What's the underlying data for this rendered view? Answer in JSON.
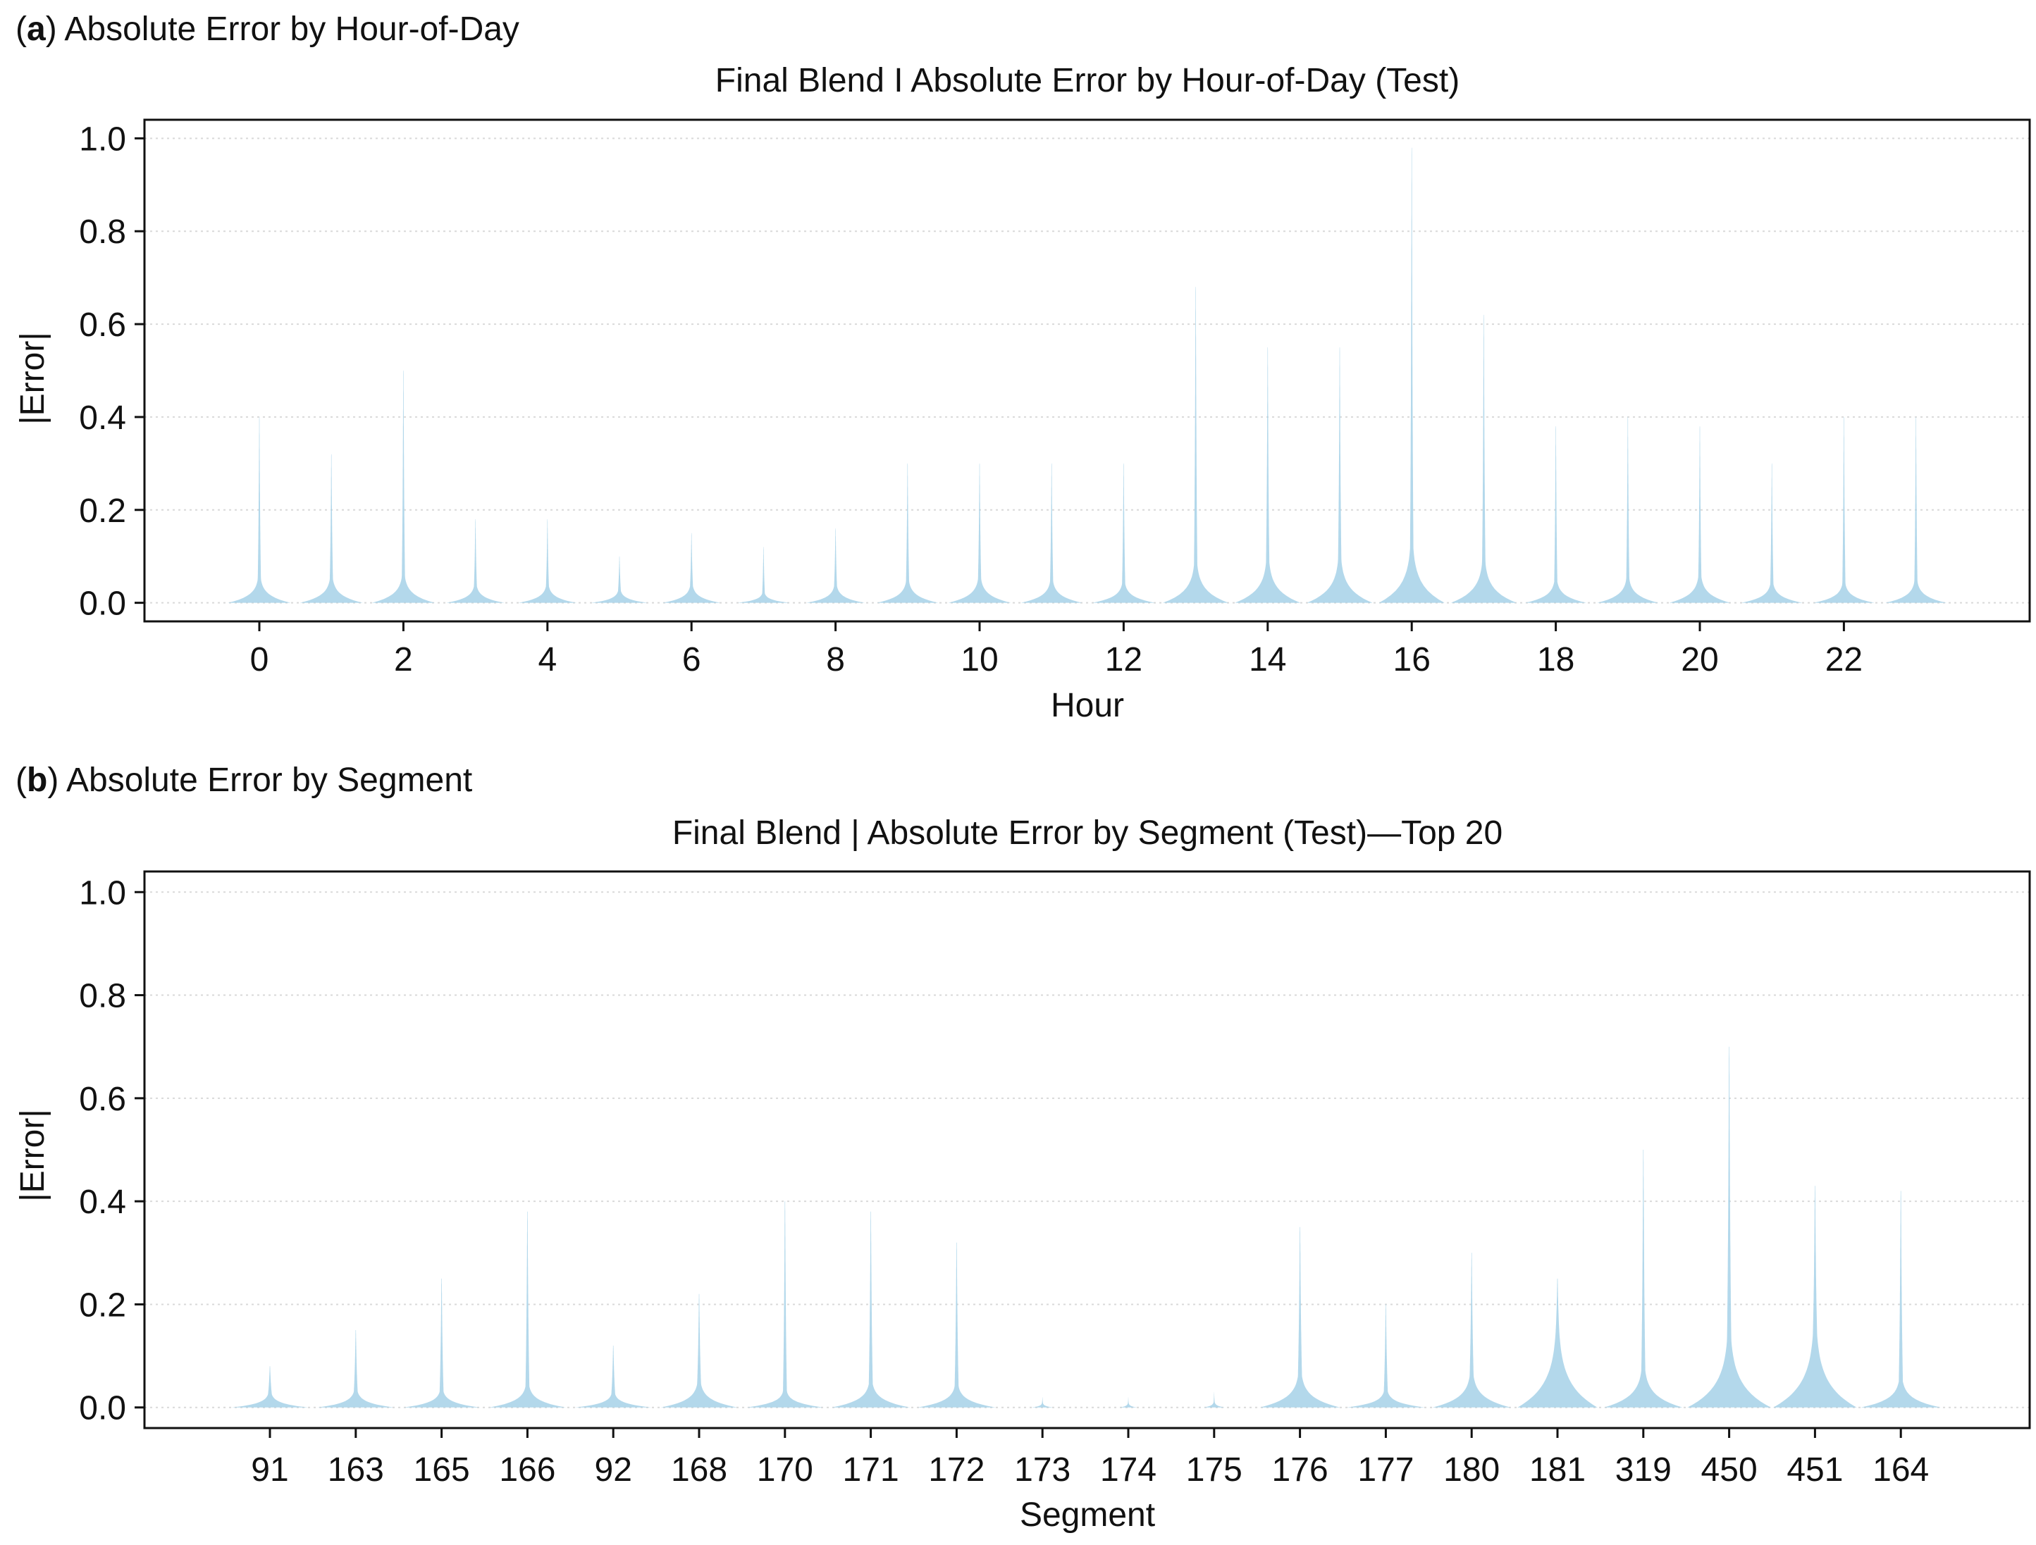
{
  "chart_data": [
    {
      "panel_letter": "a",
      "panel_label": "Absolute Error by Hour-of-Day",
      "type": "violin",
      "title": "Final Blend I Absolute Error by Hour-of-Day (Test)",
      "xlabel": "Hour",
      "ylabel": "|Error|",
      "ylim": [
        -0.04,
        1.04
      ],
      "yticks": [
        "0.0",
        "0.2",
        "0.4",
        "0.6",
        "0.8",
        "1.0"
      ],
      "grid": "horizontal dotted",
      "categories": [
        "0",
        "1",
        "2",
        "3",
        "4",
        "5",
        "6",
        "7",
        "8",
        "9",
        "10",
        "11",
        "12",
        "13",
        "14",
        "15",
        "16",
        "17",
        "18",
        "19",
        "20",
        "21",
        "22",
        "23"
      ],
      "xtick_labels": [
        "0",
        "",
        "2",
        "",
        "4",
        "",
        "6",
        "",
        "8",
        "",
        "10",
        "",
        "12",
        "",
        "14",
        "",
        "16",
        "",
        "18",
        "",
        "20",
        "",
        "22",
        ""
      ],
      "max_error": [
        0.4,
        0.32,
        0.5,
        0.18,
        0.18,
        0.1,
        0.15,
        0.12,
        0.16,
        0.3,
        0.3,
        0.3,
        0.3,
        0.68,
        0.55,
        0.55,
        0.98,
        0.62,
        0.38,
        0.4,
        0.38,
        0.3,
        0.4,
        0.4
      ],
      "body_width": [
        0.86,
        0.86,
        0.86,
        0.8,
        0.8,
        0.78,
        0.8,
        0.72,
        0.8,
        0.84,
        0.86,
        0.84,
        0.86,
        0.9,
        0.9,
        0.9,
        0.9,
        0.9,
        0.84,
        0.84,
        0.84,
        0.84,
        0.84,
        0.84
      ],
      "body_height": [
        0.05,
        0.05,
        0.055,
        0.035,
        0.035,
        0.025,
        0.035,
        0.02,
        0.035,
        0.045,
        0.05,
        0.045,
        0.04,
        0.08,
        0.085,
        0.09,
        0.115,
        0.085,
        0.045,
        0.05,
        0.055,
        0.04,
        0.04,
        0.045
      ]
    },
    {
      "panel_letter": "b",
      "panel_label": "Absolute Error by Segment",
      "type": "violin",
      "title": "Final Blend | Absolute Error by Segment (Test)—Top 20",
      "xlabel": "Segment",
      "ylabel": "|Error|",
      "ylim": [
        -0.04,
        1.04
      ],
      "yticks": [
        "0.0",
        "0.2",
        "0.4",
        "0.6",
        "0.8",
        "1.0"
      ],
      "grid": "horizontal dotted",
      "categories": [
        "91",
        "163",
        "165",
        "166",
        "92",
        "168",
        "170",
        "171",
        "172",
        "173",
        "174",
        "175",
        "176",
        "177",
        "180",
        "181",
        "319",
        "450",
        "451",
        "164"
      ],
      "xtick_labels": [
        "91",
        "163",
        "165",
        "166",
        "92",
        "168",
        "170",
        "171",
        "172",
        "173",
        "174",
        "175",
        "176",
        "177",
        "180",
        "181",
        "319",
        "450",
        "451",
        "164"
      ],
      "max_error": [
        0.08,
        0.15,
        0.25,
        0.38,
        0.12,
        0.22,
        0.4,
        0.38,
        0.32,
        0.02,
        0.02,
        0.03,
        0.35,
        0.2,
        0.3,
        0.25,
        0.5,
        0.7,
        0.43,
        0.42
      ],
      "body_width": [
        0.88,
        0.88,
        0.88,
        0.88,
        0.88,
        0.88,
        0.88,
        0.9,
        0.9,
        0.25,
        0.2,
        0.25,
        0.92,
        0.9,
        0.9,
        0.92,
        0.9,
        0.96,
        0.96,
        0.92
      ],
      "body_height": [
        0.025,
        0.03,
        0.03,
        0.04,
        0.025,
        0.045,
        0.03,
        0.045,
        0.04,
        0.008,
        0.008,
        0.01,
        0.06,
        0.03,
        0.06,
        0.14,
        0.07,
        0.13,
        0.14,
        0.05
      ]
    }
  ]
}
